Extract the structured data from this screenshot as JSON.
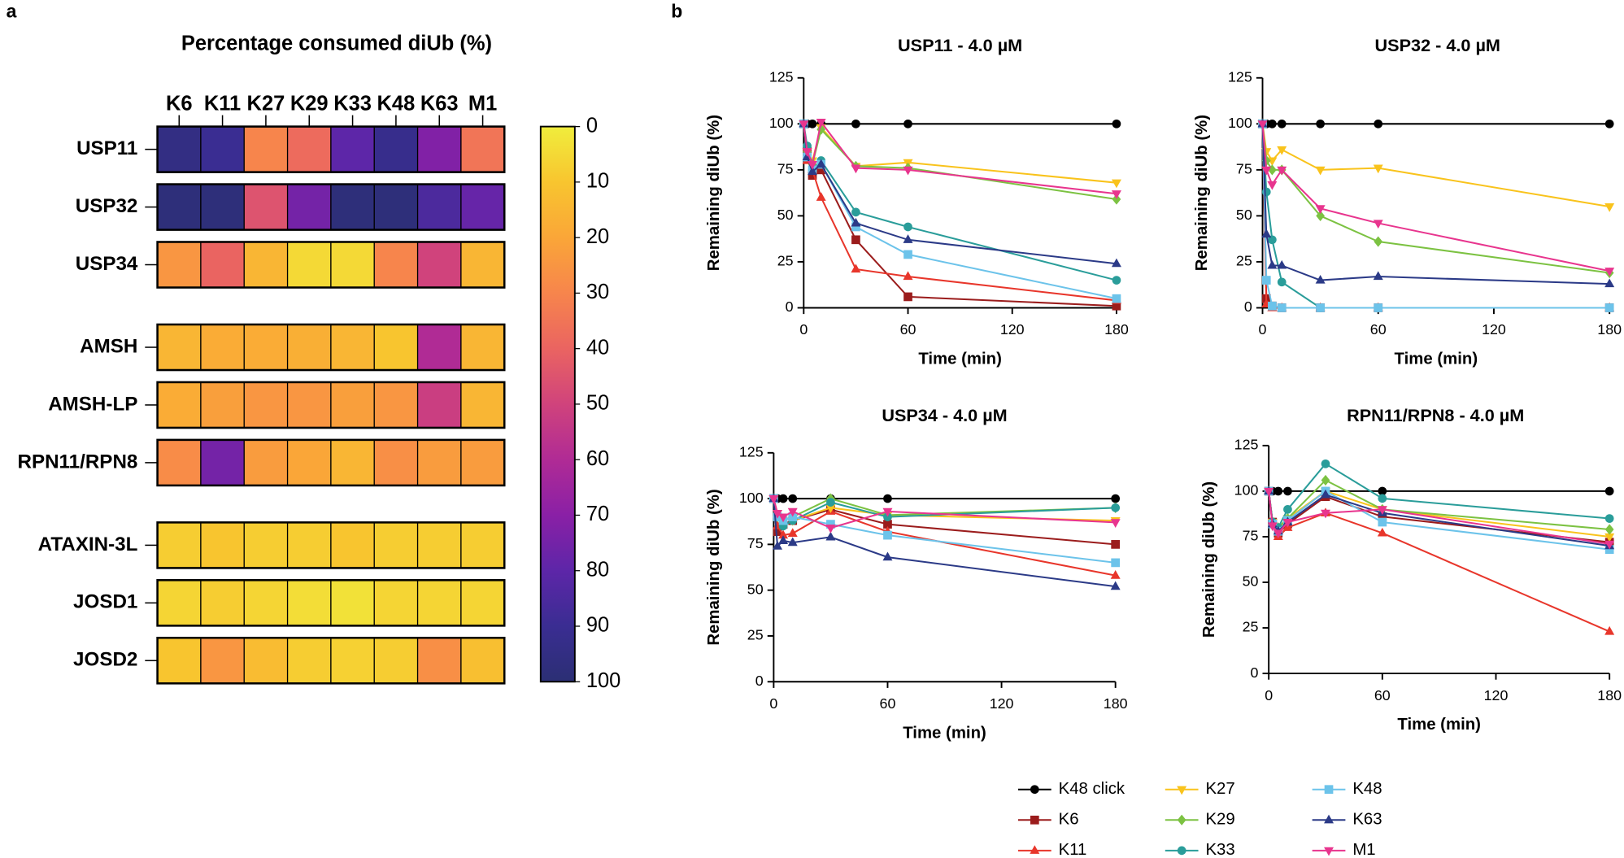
{
  "panels": [
    "a",
    "b"
  ],
  "chart_data": [
    {
      "type": "heatmap",
      "title": "Percentage consumed diUb (%)",
      "categories": [
        "K6",
        "K11",
        "K27",
        "K29",
        "K33",
        "K48",
        "K63",
        "M1"
      ],
      "rows": [
        "USP11",
        "USP32",
        "USP34",
        "AMSH",
        "AMSH-LP",
        "RPN11/RPN8",
        "ATAXIN-3L",
        "JOSD1",
        "JOSD2"
      ],
      "values": [
        [
          95,
          90,
          30,
          38,
          80,
          92,
          72,
          35
        ],
        [
          98,
          98,
          45,
          75,
          98,
          98,
          85,
          78
        ],
        [
          25,
          40,
          15,
          5,
          5,
          30,
          50,
          15
        ],
        [
          15,
          18,
          18,
          17,
          15,
          10,
          60,
          15
        ],
        [
          18,
          22,
          25,
          25,
          22,
          25,
          52,
          15
        ],
        [
          28,
          75,
          23,
          20,
          15,
          27,
          23,
          23
        ],
        [
          8,
          10,
          8,
          8,
          10,
          8,
          8,
          8
        ],
        [
          6,
          8,
          6,
          4,
          3,
          6,
          6,
          6
        ],
        [
          10,
          25,
          13,
          8,
          7,
          8,
          27,
          12
        ]
      ],
      "clim": [
        0,
        100
      ],
      "colorbar_ticks": [
        0,
        10,
        20,
        30,
        40,
        50,
        60,
        70,
        80,
        90,
        100
      ],
      "colorscale": [
        "#f0ed3c",
        "#f8c52f",
        "#faa638",
        "#f7854c",
        "#ea6461",
        "#d0437c",
        "#b02b95",
        "#8a20a6",
        "#5d26a8",
        "#3a2d92",
        "#2b2f74"
      ]
    },
    {
      "type": "line",
      "title": "USP11 - 4.0 µM",
      "x_label": "Time (min)",
      "y_label": "Remaining diUb (%)",
      "x": [
        0,
        2,
        5,
        10,
        30,
        60,
        180
      ],
      "xlim": [
        0,
        180
      ],
      "xticks": [
        0,
        60,
        120,
        180
      ],
      "ylim": [
        0,
        125
      ],
      "yticks": [
        0,
        25,
        50,
        75,
        100,
        125
      ],
      "series": [
        {
          "name": "K48 click",
          "color": "#000000",
          "marker": "circle",
          "values": [
            100,
            100,
            100,
            100,
            100,
            100,
            100
          ]
        },
        {
          "name": "K6",
          "color": "#9b1c1c",
          "marker": "square",
          "values": [
            100,
            85,
            72,
            75,
            37,
            6,
            1
          ]
        },
        {
          "name": "K11",
          "color": "#e8362b",
          "marker": "triangle-up",
          "values": [
            100,
            80,
            75,
            60,
            21,
            17,
            4
          ]
        },
        {
          "name": "K27",
          "color": "#f9c31c",
          "marker": "triangle-down",
          "values": [
            100,
            85,
            80,
            98,
            77,
            79,
            68
          ]
        },
        {
          "name": "K29",
          "color": "#7cc242",
          "marker": "diamond",
          "values": [
            100,
            85,
            78,
            97,
            77,
            76,
            59
          ]
        },
        {
          "name": "K33",
          "color": "#2a9d9a",
          "marker": "circle",
          "values": [
            100,
            88,
            75,
            80,
            52,
            44,
            15
          ]
        },
        {
          "name": "K48",
          "color": "#6cc3ea",
          "marker": "square",
          "values": [
            100,
            82,
            75,
            78,
            44,
            29,
            5
          ]
        },
        {
          "name": "K63",
          "color": "#2b3a87",
          "marker": "triangle-up",
          "values": [
            100,
            82,
            74,
            78,
            46,
            37,
            24
          ]
        },
        {
          "name": "M1",
          "color": "#e8358e",
          "marker": "triangle-down",
          "values": [
            100,
            85,
            78,
            101,
            76,
            75,
            62
          ]
        }
      ]
    },
    {
      "type": "line",
      "title": "USP32 - 4.0 µM",
      "x_label": "Time (min)",
      "y_label": "Remaining diUb (%)",
      "x": [
        0,
        2,
        5,
        10,
        30,
        60,
        180
      ],
      "xlim": [
        0,
        180
      ],
      "xticks": [
        0,
        60,
        120,
        180
      ],
      "ylim": [
        0,
        125
      ],
      "yticks": [
        0,
        25,
        50,
        75,
        100,
        125
      ],
      "series": [
        {
          "name": "K48 click",
          "color": "#000000",
          "marker": "circle",
          "values": [
            100,
            100,
            100,
            100,
            100,
            100,
            100
          ]
        },
        {
          "name": "K6",
          "color": "#9b1c1c",
          "marker": "square",
          "values": [
            100,
            5,
            1,
            0,
            0,
            0,
            0
          ]
        },
        {
          "name": "K11",
          "color": "#e8362b",
          "marker": "triangle-up",
          "values": [
            100,
            2,
            0,
            0,
            0,
            0,
            0
          ]
        },
        {
          "name": "K27",
          "color": "#f9c31c",
          "marker": "triangle-down",
          "values": [
            100,
            85,
            80,
            86,
            75,
            76,
            55
          ]
        },
        {
          "name": "K29",
          "color": "#7cc242",
          "marker": "diamond",
          "values": [
            100,
            80,
            75,
            75,
            50,
            36,
            19
          ]
        },
        {
          "name": "K33",
          "color": "#2a9d9a",
          "marker": "circle",
          "values": [
            100,
            63,
            37,
            14,
            0,
            0,
            0
          ]
        },
        {
          "name": "K48",
          "color": "#6cc3ea",
          "marker": "square",
          "values": [
            100,
            15,
            1,
            0,
            0,
            0,
            0
          ]
        },
        {
          "name": "K63",
          "color": "#2b3a87",
          "marker": "triangle-up",
          "values": [
            100,
            40,
            23,
            23,
            15,
            17,
            13
          ]
        },
        {
          "name": "M1",
          "color": "#e8358e",
          "marker": "triangle-down",
          "values": [
            100,
            75,
            67,
            75,
            54,
            46,
            20
          ]
        }
      ]
    },
    {
      "type": "line",
      "title": "USP34 - 4.0 µM",
      "x_label": "Time (min)",
      "y_label": "Remaining diUb (%)",
      "x": [
        0,
        2,
        5,
        10,
        30,
        60,
        180
      ],
      "xlim": [
        0,
        180
      ],
      "xticks": [
        0,
        60,
        120,
        180
      ],
      "ylim": [
        0,
        125
      ],
      "yticks": [
        0,
        25,
        50,
        75,
        100,
        125
      ],
      "series": [
        {
          "name": "K48 click",
          "color": "#000000",
          "marker": "circle",
          "values": [
            100,
            100,
            100,
            100,
            100,
            100,
            100
          ]
        },
        {
          "name": "K6",
          "color": "#9b1c1c",
          "marker": "square",
          "values": [
            100,
            82,
            86,
            88,
            94,
            86,
            75
          ]
        },
        {
          "name": "K11",
          "color": "#e8362b",
          "marker": "triangle-up",
          "values": [
            100,
            85,
            80,
            81,
            93,
            82,
            58
          ]
        },
        {
          "name": "K27",
          "color": "#f9c31c",
          "marker": "triangle-down",
          "values": [
            100,
            92,
            90,
            88,
            95,
            91,
            88
          ]
        },
        {
          "name": "K29",
          "color": "#7cc242",
          "marker": "diamond",
          "values": [
            100,
            90,
            88,
            90,
            100,
            91,
            95
          ]
        },
        {
          "name": "K33",
          "color": "#2a9d9a",
          "marker": "circle",
          "values": [
            100,
            90,
            85,
            88,
            98,
            90,
            95
          ]
        },
        {
          "name": "K48",
          "color": "#6cc3ea",
          "marker": "square",
          "values": [
            100,
            90,
            88,
            90,
            86,
            80,
            65
          ]
        },
        {
          "name": "K63",
          "color": "#2b3a87",
          "marker": "triangle-up",
          "values": [
            100,
            74,
            77,
            76,
            79,
            68,
            52
          ]
        },
        {
          "name": "M1",
          "color": "#e8358e",
          "marker": "triangle-down",
          "values": [
            100,
            92,
            90,
            93,
            84,
            93,
            87
          ]
        }
      ]
    },
    {
      "type": "line",
      "title": "RPN11/RPN8 - 4.0 µM",
      "x_label": "Time (min)",
      "y_label": "Remaining diUb (%)",
      "x": [
        0,
        2,
        5,
        10,
        30,
        60,
        180
      ],
      "xlim": [
        0,
        180
      ],
      "xticks": [
        0,
        60,
        120,
        180
      ],
      "ylim": [
        0,
        125
      ],
      "yticks": [
        0,
        25,
        50,
        75,
        100,
        125
      ],
      "series": [
        {
          "name": "K48 click",
          "color": "#000000",
          "marker": "circle",
          "values": [
            100,
            100,
            100,
            100,
            100,
            100,
            100
          ]
        },
        {
          "name": "K6",
          "color": "#9b1c1c",
          "marker": "square",
          "values": [
            100,
            83,
            77,
            82,
            97,
            86,
            72
          ]
        },
        {
          "name": "K11",
          "color": "#e8362b",
          "marker": "triangle-up",
          "values": [
            100,
            83,
            75,
            80,
            88,
            77,
            23
          ]
        },
        {
          "name": "K27",
          "color": "#f9c31c",
          "marker": "triangle-down",
          "values": [
            100,
            83,
            78,
            85,
            100,
            90,
            75
          ]
        },
        {
          "name": "K29",
          "color": "#7cc242",
          "marker": "diamond",
          "values": [
            100,
            83,
            80,
            85,
            106,
            90,
            79
          ]
        },
        {
          "name": "K33",
          "color": "#2a9d9a",
          "marker": "circle",
          "values": [
            100,
            83,
            80,
            90,
            115,
            96,
            85
          ]
        },
        {
          "name": "K48",
          "color": "#6cc3ea",
          "marker": "square",
          "values": [
            100,
            82,
            78,
            84,
            100,
            83,
            68
          ]
        },
        {
          "name": "K63",
          "color": "#2b3a87",
          "marker": "triangle-up",
          "values": [
            100,
            82,
            78,
            83,
            98,
            88,
            70
          ]
        },
        {
          "name": "M1",
          "color": "#e8358e",
          "marker": "triangle-down",
          "values": [
            100,
            81,
            77,
            83,
            88,
            90,
            71
          ]
        }
      ]
    }
  ]
}
